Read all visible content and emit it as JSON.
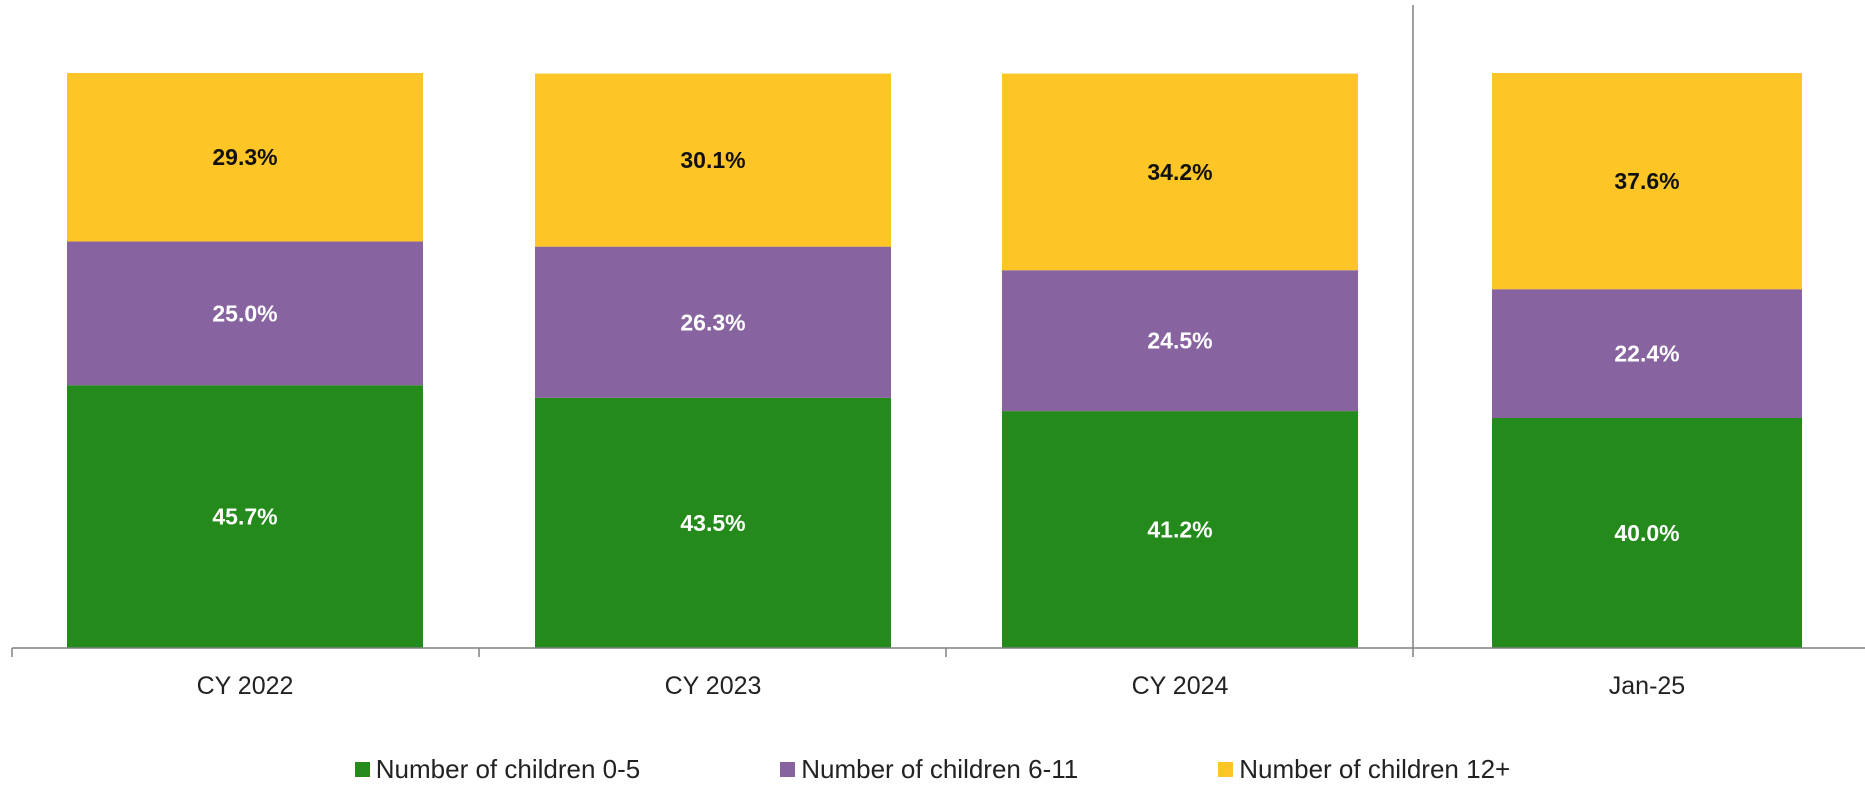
{
  "chart_data": {
    "type": "bar",
    "stacked": true,
    "percent_stacked": true,
    "categories": [
      "CY 2022",
      "CY 2023",
      "CY 2024",
      "Jan-25"
    ],
    "series": [
      {
        "name": "Number of children 0-5",
        "color": "#238a1b",
        "label_color": "#ffffff",
        "values": [
          45.7,
          43.5,
          41.2,
          40.0
        ],
        "labels": [
          "45.7%",
          "43.5%",
          "41.2%",
          "40.0%"
        ]
      },
      {
        "name": "Number of children 6-11",
        "color": "#87649f",
        "label_color": "#ffffff",
        "values": [
          25.0,
          26.3,
          24.5,
          22.4
        ],
        "labels": [
          "25.0%",
          "26.3%",
          "24.5%",
          "22.4%"
        ]
      },
      {
        "name": "Number of children 12+",
        "color": "#fdc526",
        "label_color": "#111111",
        "values": [
          29.3,
          30.1,
          34.2,
          37.6
        ],
        "labels": [
          "29.3%",
          "30.1%",
          "34.2%",
          "37.6%"
        ]
      }
    ],
    "ylim": [
      0,
      100
    ],
    "separator_before_category": "Jan-25",
    "legend_position": "bottom",
    "grid": false
  }
}
